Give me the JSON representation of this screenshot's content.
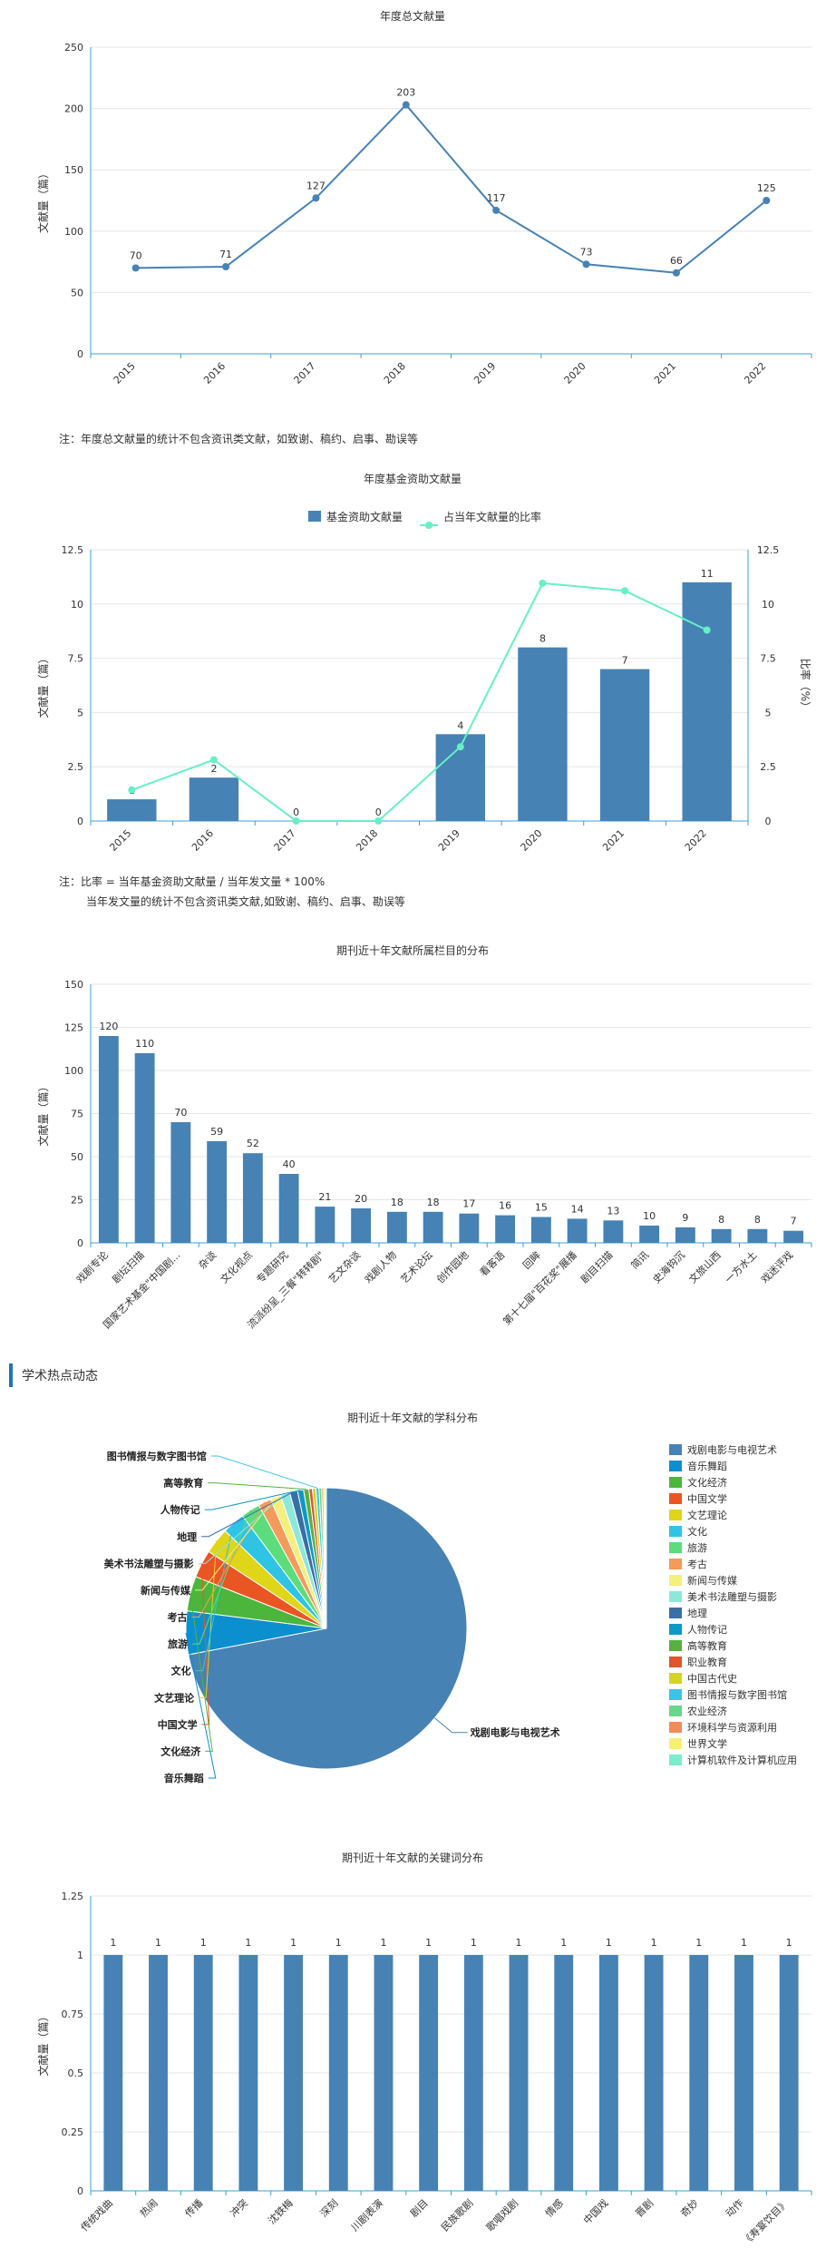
{
  "notes": {
    "chart1_note": "注：年度总文献量的统计不包含资讯类文献，如致谢、稿约、启事、勘误等",
    "chart2_note_line1": "注：比率 = 当年基金资助文献量 / 当年发文量 * 100%",
    "chart2_note_line2": "当年发文量的统计不包含资讯类文献,如致谢、稿约、启事、勘误等"
  },
  "section": {
    "title": "学术热点动态"
  },
  "colors": {
    "bar": "#4682b4",
    "line": "#4682b4",
    "ratio": "#66f0c6",
    "axis": "#3aa0d8",
    "grid": "#e6e6e6"
  },
  "chart_data": [
    {
      "type": "line",
      "title": "年度总文献量",
      "ylabel": "文献量（篇）",
      "x": [
        "2015",
        "2016",
        "2017",
        "2018",
        "2019",
        "2020",
        "2021",
        "2022"
      ],
      "values": [
        70,
        71,
        127,
        203,
        117,
        73,
        66,
        125
      ],
      "ylim": [
        0,
        250
      ],
      "yticks": [
        0,
        50,
        100,
        150,
        200,
        250
      ],
      "grid": true
    },
    {
      "type": "bar",
      "title": "年度基金资助文献量",
      "ylabel": "文献量（篇）",
      "ylabel_right": "比率（%）",
      "categories": [
        "2015",
        "2016",
        "2017",
        "2018",
        "2019",
        "2020",
        "2021",
        "2022"
      ],
      "series": [
        {
          "name": "基金资助文献量",
          "type": "bar",
          "values": [
            1,
            2,
            0,
            0,
            4,
            8,
            7,
            11
          ]
        },
        {
          "name": "占当年文献量的比率",
          "type": "line",
          "values": [
            1.43,
            2.82,
            0,
            0,
            3.42,
            10.96,
            10.61,
            8.8
          ]
        }
      ],
      "ylim": [
        0,
        12.5
      ],
      "yticks": [
        0,
        2.5,
        5,
        7.5,
        10,
        12.5
      ],
      "yticks_right": [
        0,
        2.5,
        5,
        7.5,
        10,
        12.5
      ],
      "legend": "top-center",
      "grid": true
    },
    {
      "type": "bar",
      "title": "期刊近十年文献所属栏目的分布",
      "ylabel": "文献量（篇）",
      "categories": [
        "戏剧专论",
        "剧坛扫描",
        "国家艺术基金\"中国剧...",
        "杂谈",
        "文化视点",
        "专题研究",
        "流派纷呈_三餐\"转转剧\"",
        "艺文杂谈",
        "戏剧人物",
        "艺术论坛",
        "创作园地",
        "看客语",
        "回眸",
        "第十七届\"百花奖\"展播",
        "剧目扫描",
        "简讯",
        "史海钩沉",
        "文旅山西",
        "一方水土",
        "戏迷评戏"
      ],
      "values": [
        120,
        110,
        70,
        59,
        52,
        40,
        21,
        20,
        18,
        18,
        17,
        16,
        15,
        14,
        13,
        10,
        9,
        8,
        8,
        7
      ],
      "ylim": [
        0,
        150
      ],
      "yticks": [
        0,
        25,
        50,
        75,
        100,
        125,
        150
      ],
      "grid": true
    },
    {
      "type": "pie",
      "title": "期刊近十年文献的学科分布",
      "legend": "right",
      "slices": [
        {
          "label": "戏剧电影与电视艺术",
          "value": 72.0,
          "color": "#4682b4"
        },
        {
          "label": "音乐舞蹈",
          "value": 5.0,
          "color": "#0c8fce"
        },
        {
          "label": "文化经济",
          "value": 4.0,
          "color": "#4bb53c"
        },
        {
          "label": "中国文学",
          "value": 3.2,
          "color": "#ea5524"
        },
        {
          "label": "文艺理论",
          "value": 3.0,
          "color": "#dfd519"
        },
        {
          "label": "文化",
          "value": 2.6,
          "color": "#2fc4e4"
        },
        {
          "label": "旅游",
          "value": 2.2,
          "color": "#5cdc7b"
        },
        {
          "label": "考古",
          "value": 1.5,
          "color": "#f49a5b"
        },
        {
          "label": "新闻与传媒",
          "value": 1.2,
          "color": "#f6ef7c"
        },
        {
          "label": "美术书法雕塑与摄影",
          "value": 1.1,
          "color": "#8ce8d8"
        },
        {
          "label": "地理",
          "value": 0.9,
          "color": "#3a6fa6"
        },
        {
          "label": "人物传记",
          "value": 0.7,
          "color": "#0e98c8"
        },
        {
          "label": "高等教育",
          "value": 0.6,
          "color": "#59b03f"
        },
        {
          "label": "职业教育",
          "value": 0.4,
          "color": "#e0552b"
        },
        {
          "label": "中国古代史",
          "value": 0.4,
          "color": "#d7d22a"
        },
        {
          "label": "图书情报与数字图书馆",
          "value": 0.35,
          "color": "#3cc4e6"
        },
        {
          "label": "农业经济",
          "value": 0.3,
          "color": "#66d889"
        },
        {
          "label": "环境科学与资源利用",
          "value": 0.2,
          "color": "#f58b5a"
        },
        {
          "label": "世界文学",
          "value": 0.2,
          "color": "#f5ef78"
        },
        {
          "label": "计算机软件及计算机应用",
          "value": 0.15,
          "color": "#7ceccc"
        }
      ],
      "callouts": [
        "戏剧电影与电视艺术",
        "音乐舞蹈",
        "文化经济",
        "中国文学",
        "文艺理论",
        "文化",
        "旅游",
        "考古",
        "新闻与传媒",
        "美术书法雕塑与摄影",
        "地理",
        "人物传记",
        "高等教育",
        "图书情报与数字图书馆"
      ]
    },
    {
      "type": "bar",
      "title": "期刊近十年文献的关键词分布",
      "ylabel": "文献量（篇）",
      "categories": [
        "传统戏曲",
        "热闹",
        "传播",
        "冲突",
        "沈铁梅",
        "深刻",
        "川剧表演",
        "剧目",
        "民族歌剧",
        "歌唱戏剧",
        "情感",
        "中国戏",
        "晋剧",
        "奇妙",
        "动作",
        "《寿宴饮目》"
      ],
      "values": [
        1,
        1,
        1,
        1,
        1,
        1,
        1,
        1,
        1,
        1,
        1,
        1,
        1,
        1,
        1,
        1
      ],
      "ylim": [
        0,
        1.25
      ],
      "yticks": [
        0,
        0.25,
        0.5,
        0.75,
        1,
        1.25
      ],
      "grid": true
    }
  ]
}
